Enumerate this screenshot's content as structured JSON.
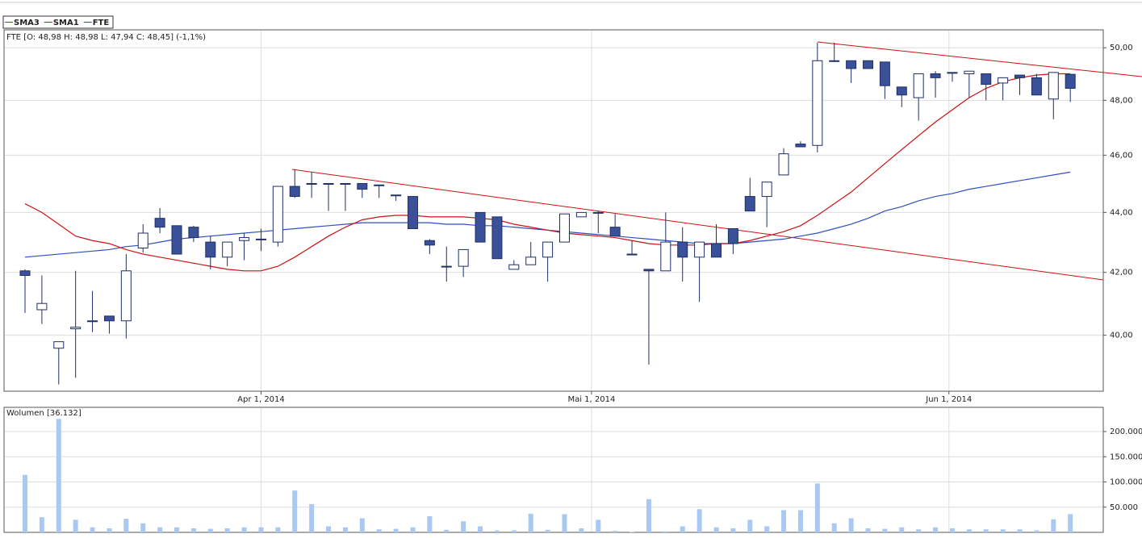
{
  "chart_data": [
    {
      "type": "candlestick",
      "info": "FTE [O: 48,98  H: 48,98  L: 47,94  C: 48,45] (-1,1%)",
      "log_scale": true,
      "grid": true,
      "categories": [
        null,
        null,
        null,
        null,
        null,
        null,
        null,
        null,
        null,
        null,
        null,
        null,
        null,
        null,
        null,
        null,
        null,
        null,
        null,
        null,
        null,
        null,
        null,
        null,
        null,
        null,
        null,
        null,
        null,
        null,
        null,
        null,
        null,
        null,
        null,
        null,
        null,
        null,
        null,
        null,
        null,
        null,
        null,
        null,
        null,
        null,
        null,
        null,
        null,
        null,
        null,
        null,
        null,
        null,
        null,
        null,
        null,
        null,
        null,
        null,
        null,
        null,
        null
      ],
      "xticks": [
        {
          "value": 14,
          "label": "Apr 1, 2014"
        },
        {
          "value": 33.6,
          "label": "Mai 1, 2014"
        },
        {
          "value": 54.8,
          "label": "Jun 1, 2014"
        }
      ],
      "ylim": [
        38.3,
        50.7
      ],
      "yticks": [
        {
          "value": 40,
          "label": "40,00"
        },
        {
          "value": 42,
          "label": "42,00"
        },
        {
          "value": 44,
          "label": "44,00"
        },
        {
          "value": 46,
          "label": "46,00"
        },
        {
          "value": 48,
          "label": "48,00"
        },
        {
          "value": 50,
          "label": "50,00"
        }
      ],
      "series": [
        {
          "name": "SMA3",
          "color": "#2f4fc0",
          "values": [
            42.5,
            42.55,
            42.6,
            42.65,
            42.7,
            42.75,
            42.85,
            42.9,
            43.0,
            43.1,
            43.15,
            43.2,
            43.25,
            43.3,
            43.35,
            43.4,
            43.45,
            43.5,
            43.55,
            43.6,
            43.65,
            43.65,
            43.65,
            43.65,
            43.65,
            43.6,
            43.6,
            43.55,
            43.55,
            43.5,
            43.45,
            43.4,
            43.35,
            43.3,
            43.25,
            43.2,
            43.15,
            43.1,
            43.05,
            43.0,
            42.95,
            42.95,
            42.95,
            43.0,
            43.05,
            43.1,
            43.2,
            43.3,
            43.45,
            43.6,
            43.8,
            44.05,
            44.2,
            44.4,
            44.55,
            44.65,
            44.8,
            44.9,
            45.0,
            45.1,
            45.2,
            45.3,
            45.4
          ]
        },
        {
          "name": "SMA1",
          "color": "#cc1111",
          "values": [
            44.3,
            44.0,
            43.6,
            43.2,
            43.05,
            42.95,
            42.75,
            42.6,
            42.5,
            42.4,
            42.3,
            42.2,
            42.1,
            42.05,
            42.05,
            42.2,
            42.5,
            42.85,
            43.2,
            43.5,
            43.75,
            43.85,
            43.9,
            43.9,
            43.85,
            43.85,
            43.85,
            43.8,
            43.75,
            43.6,
            43.5,
            43.4,
            43.3,
            43.25,
            43.2,
            43.15,
            43.05,
            42.95,
            42.9,
            42.9,
            42.9,
            42.95,
            42.95,
            43.05,
            43.2,
            43.35,
            43.55,
            43.9,
            44.3,
            44.7,
            45.2,
            45.7,
            46.2,
            46.7,
            47.2,
            47.65,
            48.1,
            48.45,
            48.7,
            48.85,
            48.95,
            49.0,
            49.0
          ]
        },
        {
          "name": "FTE",
          "color": "#3a5199",
          "open": [
            42.05,
            40.8,
            39.6,
            40.2,
            40.45,
            40.6,
            40.45,
            42.8,
            43.8,
            43.55,
            43.5,
            43.0,
            42.5,
            43.05,
            43.1,
            43.0,
            44.9,
            45.0,
            45.0,
            45.0,
            45.0,
            44.95,
            44.6,
            44.55,
            43.05,
            42.2,
            42.2,
            44.0,
            43.85,
            42.1,
            42.25,
            42.5,
            43.0,
            43.85,
            44.0,
            43.5,
            42.6,
            42.1,
            42.05,
            43.0,
            42.5,
            42.95,
            43.45,
            44.55,
            44.55,
            45.3,
            46.4,
            46.35,
            49.5,
            49.5,
            49.5,
            49.45,
            48.5,
            48.1,
            49.0,
            49.05,
            49.0,
            49.0,
            48.65,
            48.95,
            48.85,
            48.05,
            48.98
          ],
          "high": [
            42.1,
            41.9,
            39.8,
            42.05,
            41.4,
            40.6,
            42.6,
            43.6,
            44.15,
            43.55,
            43.55,
            43.2,
            43.0,
            43.3,
            43.45,
            44.9,
            45.5,
            45.4,
            45.0,
            45.0,
            45.0,
            44.95,
            44.6,
            44.55,
            43.1,
            42.85,
            42.75,
            44.0,
            43.85,
            42.4,
            43.0,
            43.0,
            43.95,
            44.0,
            44.05,
            43.95,
            43.05,
            42.1,
            44.0,
            43.5,
            43.0,
            43.6,
            43.45,
            45.2,
            45.05,
            46.25,
            46.5,
            50.2,
            50.2,
            49.5,
            49.5,
            49.45,
            48.5,
            49.0,
            49.1,
            49.05,
            49.1,
            49.0,
            48.85,
            48.95,
            49.0,
            49.05,
            48.98
          ],
          "low": [
            40.7,
            40.35,
            38.5,
            38.7,
            40.1,
            40.05,
            39.9,
            42.65,
            43.3,
            42.6,
            43.0,
            42.1,
            42.2,
            42.4,
            42.7,
            42.85,
            44.5,
            44.5,
            44.05,
            44.05,
            44.5,
            44.5,
            44.4,
            43.45,
            42.6,
            41.7,
            41.85,
            43.0,
            42.45,
            42.1,
            42.25,
            41.7,
            43.0,
            43.85,
            43.3,
            43.2,
            42.6,
            39.1,
            42.05,
            41.7,
            41.05,
            42.5,
            42.6,
            44.05,
            43.5,
            45.3,
            46.3,
            46.1,
            49.5,
            48.65,
            49.2,
            48.05,
            47.75,
            47.25,
            48.1,
            48.7,
            48.1,
            48.0,
            48.0,
            48.2,
            48.2,
            47.3,
            47.94
          ],
          "close": [
            41.9,
            41.0,
            39.8,
            40.25,
            40.45,
            40.45,
            42.05,
            43.3,
            43.5,
            42.6,
            43.15,
            42.5,
            43.0,
            43.15,
            43.1,
            44.9,
            44.55,
            45.0,
            45.0,
            45.0,
            44.8,
            44.95,
            44.6,
            43.45,
            42.9,
            42.2,
            42.75,
            43.0,
            42.45,
            42.25,
            42.5,
            43.0,
            43.95,
            44.0,
            44.0,
            43.2,
            42.6,
            42.05,
            43.0,
            42.5,
            43.0,
            42.5,
            42.95,
            44.05,
            45.05,
            46.05,
            46.3,
            49.5,
            49.5,
            49.2,
            49.2,
            48.55,
            48.2,
            49.0,
            48.85,
            49.05,
            49.1,
            48.6,
            48.85,
            48.85,
            48.2,
            49.05,
            48.45
          ]
        }
      ]
    },
    {
      "type": "bar",
      "title": "Wolumen [36.132]",
      "color": "#a9c9f2",
      "grid": true,
      "values": [
        114000,
        30000,
        225000,
        25000,
        10000,
        8000,
        27000,
        18000,
        10000,
        10000,
        8000,
        7000,
        8000,
        10000,
        10000,
        10000,
        83000,
        56000,
        12000,
        10000,
        28000,
        6000,
        7000,
        10000,
        32000,
        5000,
        22000,
        12000,
        4000,
        4000,
        37000,
        5000,
        36000,
        8000,
        25000,
        3000,
        1000,
        66000,
        2000,
        12000,
        46000,
        10000,
        8000,
        25000,
        12000,
        44000,
        44000,
        97000,
        18000,
        28000,
        8000,
        7000,
        10000,
        6000,
        10000,
        8000,
        6000,
        6000,
        6000,
        6000,
        4000,
        26000,
        36132
      ],
      "ylim": [
        0,
        248000
      ],
      "yticks": [
        {
          "value": 50000,
          "label": "50.000"
        },
        {
          "value": 100000,
          "label": "100.000"
        },
        {
          "value": 150000,
          "label": "150.000"
        },
        {
          "value": 200000,
          "label": "200.000"
        }
      ]
    }
  ]
}
